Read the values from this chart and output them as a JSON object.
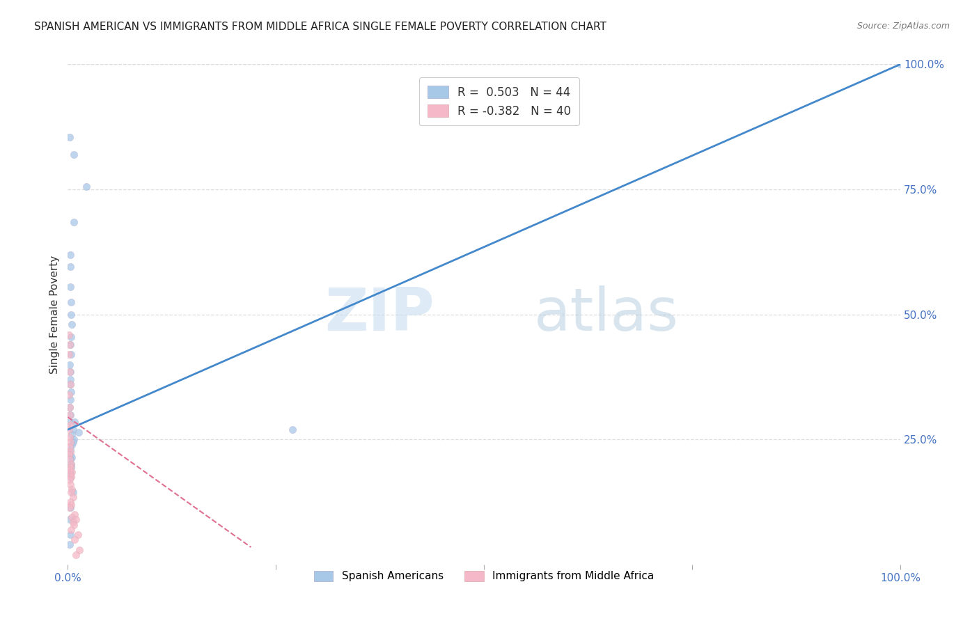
{
  "title": "SPANISH AMERICAN VS IMMIGRANTS FROM MIDDLE AFRICA SINGLE FEMALE POVERTY CORRELATION CHART",
  "source": "Source: ZipAtlas.com",
  "ylabel": "Single Female Poverty",
  "legend_label1": "Spanish Americans",
  "legend_label2": "Immigrants from Middle Africa",
  "r1": "0.503",
  "n1": "44",
  "r2": "-0.382",
  "n2": "40",
  "blue_color": "#a8c8e8",
  "pink_color": "#f4b8c8",
  "line_blue": "#4488cc",
  "line_pink": "#e07090",
  "watermark_zip": "ZIP",
  "watermark_atlas": "atlas",
  "blue_line_x0": 0.0,
  "blue_line_y0": 0.27,
  "blue_line_x1": 1.0,
  "blue_line_y1": 1.0,
  "pink_line_x0": 0.0,
  "pink_line_y0": 0.295,
  "pink_line_x1": 0.22,
  "pink_line_y1": 0.035,
  "blue_scatter_x": [
    0.002,
    0.007,
    0.022,
    0.007,
    0.003,
    0.003,
    0.003,
    0.004,
    0.004,
    0.005,
    0.004,
    0.003,
    0.004,
    0.002,
    0.003,
    0.003,
    0.003,
    0.004,
    0.003,
    0.002,
    0.003,
    0.002,
    0.008,
    0.006,
    0.013,
    0.005,
    0.007,
    0.006,
    0.005,
    0.003,
    0.003,
    0.005,
    0.003,
    0.004,
    0.004,
    0.003,
    0.003,
    0.006,
    0.003,
    0.002,
    0.003,
    0.002,
    1.0,
    0.27
  ],
  "blue_scatter_y": [
    0.855,
    0.82,
    0.755,
    0.685,
    0.62,
    0.595,
    0.555,
    0.525,
    0.5,
    0.48,
    0.455,
    0.44,
    0.42,
    0.4,
    0.385,
    0.37,
    0.36,
    0.345,
    0.33,
    0.315,
    0.3,
    0.285,
    0.285,
    0.27,
    0.265,
    0.26,
    0.25,
    0.245,
    0.24,
    0.23,
    0.22,
    0.215,
    0.21,
    0.2,
    0.195,
    0.185,
    0.175,
    0.145,
    0.115,
    0.09,
    0.06,
    0.04,
    1.0,
    0.27
  ],
  "pink_scatter_x": [
    0.001,
    0.002,
    0.001,
    0.002,
    0.003,
    0.001,
    0.002,
    0.002,
    0.003,
    0.001,
    0.002,
    0.003,
    0.002,
    0.003,
    0.001,
    0.002,
    0.004,
    0.003,
    0.002,
    0.005,
    0.003,
    0.004,
    0.002,
    0.003,
    0.005,
    0.004,
    0.006,
    0.003,
    0.004,
    0.002,
    0.008,
    0.005,
    0.01,
    0.006,
    0.007,
    0.004,
    0.012,
    0.008,
    0.014,
    0.01
  ],
  "pink_scatter_y": [
    0.46,
    0.44,
    0.42,
    0.385,
    0.36,
    0.34,
    0.315,
    0.3,
    0.28,
    0.27,
    0.255,
    0.245,
    0.235,
    0.225,
    0.22,
    0.21,
    0.2,
    0.195,
    0.19,
    0.185,
    0.18,
    0.175,
    0.17,
    0.16,
    0.15,
    0.145,
    0.135,
    0.125,
    0.12,
    0.115,
    0.1,
    0.095,
    0.09,
    0.085,
    0.08,
    0.07,
    0.06,
    0.05,
    0.03,
    0.02
  ],
  "xlim": [
    0.0,
    1.0
  ],
  "ylim": [
    0.0,
    1.0
  ],
  "background_color": "#ffffff",
  "title_fontsize": 11,
  "source_fontsize": 9,
  "tick_color": "#4472c4",
  "ytick_vals": [
    0.25,
    0.5,
    0.75,
    1.0
  ],
  "ytick_labels": [
    "25.0%",
    "50.0%",
    "75.0%",
    "100.0%"
  ],
  "xtick_vals": [
    0.0,
    1.0
  ],
  "xtick_labels": [
    "0.0%",
    "100.0%"
  ],
  "grid_color": "#dddddd",
  "scatter_size": 55,
  "scatter_alpha": 0.75
}
